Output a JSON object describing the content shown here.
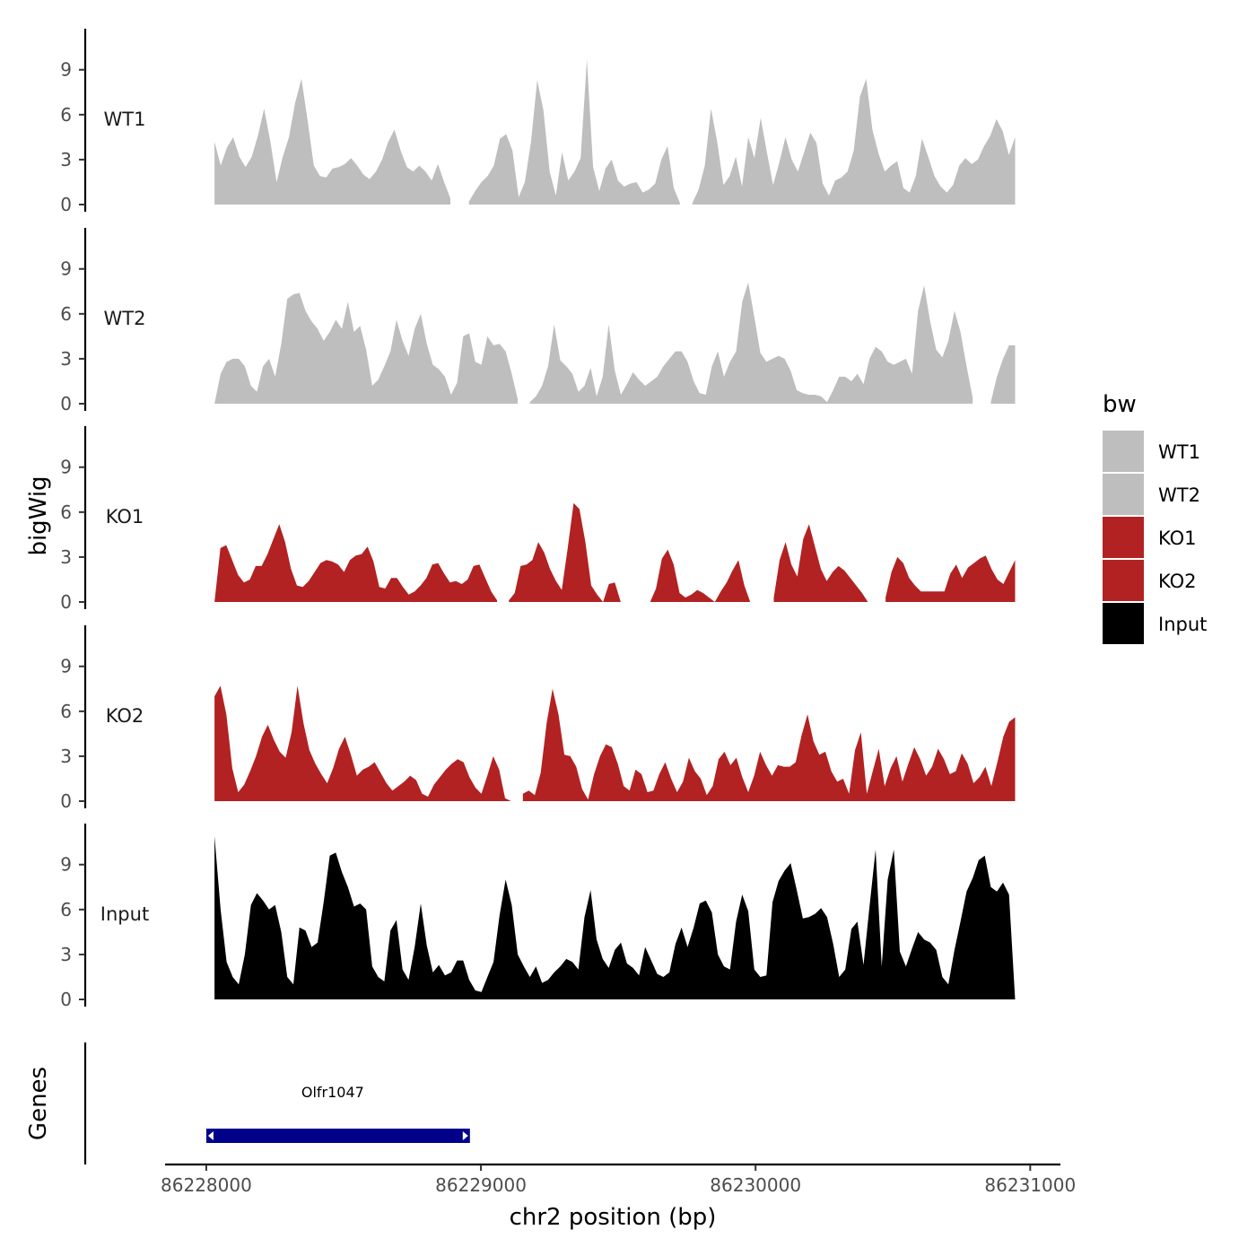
{
  "chart_data": {
    "type": "area",
    "xlabel": "chr2 position (bp)",
    "ylabel": "bigWig",
    "genes_label": "Genes",
    "xlim": [
      86227850,
      86231110
    ],
    "x_ticks": [
      86228000,
      86229000,
      86230000,
      86231000
    ],
    "x_tick_labels": [
      "86228000",
      "86229000",
      "86230000",
      "86231000"
    ],
    "ylim": [
      0,
      11.5
    ],
    "y_ticks": [
      0,
      3,
      6,
      9
    ],
    "y_tick_labels": [
      "0",
      "3",
      "6",
      "9"
    ],
    "legend": {
      "title": "bw",
      "position": "right",
      "entries": [
        {
          "label": "WT1",
          "color": "#BEBEBE"
        },
        {
          "label": "WT2",
          "color": "#BEBEBE"
        },
        {
          "label": "KO1",
          "color": "#B22222"
        },
        {
          "label": "KO2",
          "color": "#B22222"
        },
        {
          "label": "Input",
          "color": "#000000"
        }
      ]
    },
    "x_start": 86228030,
    "x_end": 86230945,
    "series": [
      {
        "name": "WT1",
        "color": "#BEBEBE",
        "values": [
          4.2,
          2.6,
          3.8,
          4.5,
          3.2,
          2.5,
          3.2,
          4.6,
          6.4,
          4.2,
          1.5,
          3.2,
          4.5,
          6.8,
          8.4,
          5.6,
          2.6,
          1.9,
          1.8,
          2.4,
          2.5,
          2.7,
          3.1,
          2.6,
          2.0,
          1.7,
          2.2,
          3.0,
          4.2,
          5.0,
          3.6,
          2.5,
          2.2,
          2.6,
          2.2,
          1.6,
          2.7,
          1.5,
          0.4,
          null,
          null,
          0.2,
          0.9,
          1.5,
          1.9,
          2.6,
          4.4,
          4.7,
          3.6,
          0.5,
          1.5,
          4.2,
          8.3,
          6.3,
          2.2,
          0.6,
          3.5,
          1.6,
          2.2,
          3.1,
          9.7,
          2.5,
          0.9,
          2.4,
          3.0,
          1.6,
          1.2,
          1.4,
          1.5,
          0.8,
          1.0,
          1.4,
          3.0,
          3.9,
          1.1,
          0.1,
          null,
          0.1,
          1.0,
          2.6,
          6.4,
          4.2,
          1.3,
          1.9,
          3.2,
          1.2,
          4.5,
          3.1,
          5.8,
          3.5,
          1.3,
          2.8,
          4.5,
          3.0,
          2.2,
          3.5,
          4.8,
          4.1,
          1.4,
          0.6,
          1.6,
          1.8,
          2.2,
          3.6,
          7.2,
          8.4,
          5.0,
          3.4,
          2.2,
          2.6,
          2.9,
          1.1,
          0.8,
          1.9,
          4.4,
          3.2,
          1.9,
          1.2,
          0.8,
          1.3,
          2.6,
          3.1,
          2.7,
          3.0,
          3.9,
          4.6,
          5.7,
          4.9,
          3.3,
          4.5
        ]
      },
      {
        "name": "WT2",
        "color": "#BEBEBE",
        "values": [
          0.0,
          2.0,
          2.8,
          3.0,
          3.0,
          2.5,
          1.2,
          0.8,
          2.5,
          3.0,
          1.8,
          4.0,
          7.0,
          7.3,
          7.4,
          6.2,
          5.5,
          5.0,
          4.2,
          4.8,
          5.6,
          5.0,
          6.8,
          4.8,
          5.2,
          3.6,
          1.2,
          1.6,
          2.5,
          3.5,
          5.6,
          4.2,
          3.2,
          5.0,
          6.0,
          4.0,
          2.6,
          2.3,
          1.8,
          0.6,
          1.4,
          4.5,
          4.7,
          2.8,
          2.6,
          4.5,
          3.9,
          4.0,
          3.5,
          2.0,
          0.3,
          null,
          0.1,
          0.5,
          1.2,
          2.5,
          5.3,
          2.9,
          2.5,
          2.0,
          0.8,
          1.2,
          2.4,
          0.5,
          1.8,
          5.3,
          2.2,
          0.6,
          1.3,
          2.1,
          1.6,
          1.2,
          1.5,
          1.8,
          2.5,
          3.0,
          3.5,
          3.5,
          2.8,
          1.5,
          0.7,
          0.6,
          2.5,
          3.5,
          1.8,
          2.8,
          3.5,
          6.8,
          8.1,
          5.8,
          3.4,
          2.8,
          3.0,
          3.2,
          3.0,
          2.2,
          0.9,
          0.7,
          0.6,
          0.6,
          0.5,
          0.1,
          0.9,
          1.8,
          1.8,
          1.5,
          2.0,
          1.3,
          3.0,
          3.8,
          3.5,
          2.8,
          2.6,
          2.8,
          3.0,
          2.0,
          6.2,
          7.9,
          5.5,
          3.6,
          3.1,
          4.2,
          6.2,
          4.8,
          2.5,
          0.4,
          null,
          null,
          0.1,
          1.8,
          3.0,
          3.9,
          3.9
        ]
      },
      {
        "name": "KO1",
        "color": "#B22222",
        "values": [
          0.0,
          3.6,
          3.8,
          2.8,
          1.8,
          1.3,
          1.5,
          2.4,
          2.4,
          3.2,
          4.2,
          5.2,
          4.0,
          2.2,
          1.1,
          1.0,
          1.4,
          2.0,
          2.6,
          2.8,
          2.7,
          2.5,
          2.0,
          2.8,
          3.1,
          3.2,
          3.7,
          2.7,
          1.0,
          0.9,
          1.6,
          1.6,
          1.0,
          0.5,
          0.7,
          1.1,
          1.6,
          2.5,
          2.6,
          1.9,
          1.3,
          1.4,
          1.2,
          1.5,
          2.4,
          2.5,
          1.6,
          0.7,
          0.1,
          null,
          0.1,
          0.6,
          2.4,
          2.5,
          2.8,
          4.0,
          3.3,
          2.2,
          1.4,
          0.8,
          3.6,
          6.6,
          6.2,
          4.0,
          1.1,
          0.5,
          0.0,
          1.2,
          1.3,
          0.0,
          null,
          null,
          null,
          null,
          0.0,
          0.9,
          2.9,
          3.5,
          2.5,
          0.6,
          0.3,
          0.5,
          0.8,
          0.6,
          0.3,
          0.0,
          0.7,
          1.3,
          2.1,
          2.8,
          1.1,
          0.0,
          null,
          null,
          null,
          0.3,
          2.8,
          4.0,
          2.5,
          1.7,
          4.2,
          5.2,
          3.7,
          2.2,
          1.4,
          2.0,
          2.4,
          2.1,
          1.6,
          1.1,
          0.6,
          0.0,
          null,
          null,
          0.3,
          2.0,
          3.0,
          2.6,
          1.6,
          1.1,
          0.7,
          0.7,
          0.7,
          0.7,
          0.7,
          1.9,
          2.5,
          1.6,
          2.3,
          2.6,
          2.9,
          3.1,
          2.2,
          1.5,
          1.2,
          2.0,
          2.8
        ]
      },
      {
        "name": "KO2",
        "color": "#B22222",
        "values": [
          7.0,
          7.7,
          5.8,
          2.2,
          0.6,
          1.1,
          2.0,
          3.0,
          4.3,
          5.1,
          4.1,
          3.3,
          2.9,
          4.6,
          7.7,
          5.2,
          3.4,
          2.5,
          1.8,
          1.2,
          2.2,
          3.5,
          4.3,
          3.1,
          1.7,
          2.1,
          2.3,
          2.6,
          1.9,
          1.2,
          0.7,
          1.0,
          1.3,
          1.7,
          1.4,
          0.5,
          0.3,
          1.1,
          1.6,
          2.1,
          2.5,
          2.8,
          2.6,
          1.6,
          0.9,
          0.5,
          1.7,
          3.0,
          2.1,
          0.2,
          0.0,
          null,
          0.5,
          0.7,
          0.4,
          1.9,
          5.2,
          7.5,
          5.8,
          3.1,
          3.0,
          2.3,
          0.8,
          0.1,
          1.8,
          3.0,
          3.8,
          3.6,
          2.5,
          1.0,
          0.7,
          2.1,
          1.8,
          0.6,
          0.7,
          1.8,
          2.6,
          1.5,
          0.6,
          1.3,
          2.9,
          2.0,
          1.5,
          0.4,
          1.0,
          2.8,
          3.3,
          2.4,
          2.9,
          1.6,
          0.6,
          1.7,
          3.3,
          2.4,
          1.7,
          2.4,
          2.3,
          2.3,
          2.6,
          4.4,
          5.8,
          4.0,
          3.1,
          3.3,
          2.0,
          1.3,
          1.5,
          0.5,
          3.4,
          4.6,
          0.5,
          2.0,
          3.5,
          1.0,
          2.2,
          3.0,
          1.3,
          2.5,
          3.6,
          2.8,
          1.7,
          2.3,
          3.5,
          2.8,
          1.8,
          2.0,
          3.2,
          2.5,
          1.2,
          1.6,
          2.3,
          1.0,
          2.6,
          4.3,
          5.3,
          5.6
        ]
      },
      {
        "name": "Input",
        "color": "#000000",
        "values": [
          10.9,
          6.0,
          2.5,
          1.5,
          1.0,
          3.0,
          6.3,
          7.1,
          6.6,
          6.0,
          6.3,
          4.5,
          1.5,
          1.0,
          4.8,
          4.6,
          3.5,
          3.8,
          6.5,
          9.6,
          9.8,
          8.5,
          7.5,
          6.2,
          6.4,
          6.0,
          2.2,
          1.5,
          1.2,
          4.6,
          5.3,
          2.0,
          1.3,
          3.5,
          6.4,
          3.6,
          1.8,
          2.3,
          1.6,
          1.8,
          2.6,
          2.6,
          1.3,
          0.6,
          0.5,
          1.5,
          2.5,
          5.6,
          8.0,
          6.3,
          3.0,
          2.2,
          1.5,
          2.2,
          1.1,
          1.3,
          1.8,
          2.2,
          2.7,
          2.5,
          2.0,
          5.5,
          7.3,
          4.0,
          2.7,
          2.1,
          3.3,
          3.8,
          2.4,
          2.1,
          1.6,
          3.5,
          2.6,
          1.7,
          1.5,
          1.8,
          3.7,
          4.8,
          3.5,
          4.8,
          6.4,
          6.6,
          5.8,
          3.0,
          2.2,
          2.0,
          5.2,
          7.0,
          5.9,
          2.0,
          1.5,
          1.6,
          6.5,
          7.9,
          8.6,
          9.1,
          7.3,
          5.4,
          5.5,
          5.7,
          6.1,
          5.5,
          3.7,
          1.5,
          2.0,
          4.7,
          5.2,
          2.3,
          6.2,
          10.0,
          2.2,
          8.0,
          10.0,
          3.2,
          2.2,
          3.4,
          4.5,
          4.0,
          3.8,
          3.3,
          1.5,
          1.0,
          3.3,
          5.2,
          7.2,
          8.1,
          9.3,
          9.6,
          7.5,
          7.2,
          7.8,
          7.0,
          0.0
        ]
      }
    ],
    "gene_track": {
      "genes": [
        {
          "name": "Olfr1047",
          "start": 86228000,
          "end": 86228960,
          "strand": "+",
          "color": "#00008B"
        }
      ]
    }
  }
}
